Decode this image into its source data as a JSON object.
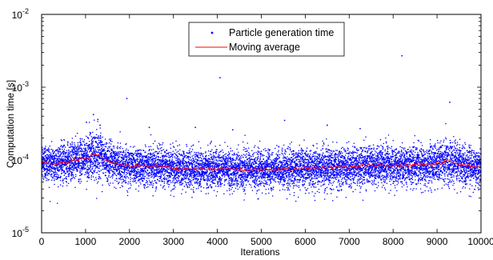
{
  "chart_data": {
    "type": "scatter",
    "title": "",
    "xlabel": "Iterations",
    "ylabel": "Computation time [s]",
    "xlim": [
      0,
      10000
    ],
    "ylim": [
      1e-05,
      0.01
    ],
    "yscale": "log",
    "grid": false,
    "legend_position": "top-center",
    "x_ticks": [
      "0",
      "1000",
      "2000",
      "3000",
      "4000",
      "5000",
      "6000",
      "7000",
      "8000",
      "9000",
      "10000"
    ],
    "y_ticks": [
      {
        "base": "10",
        "exp": "-5"
      },
      {
        "base": "10",
        "exp": "-4"
      },
      {
        "base": "10",
        "exp": "-3"
      },
      {
        "base": "10",
        "exp": "-2"
      }
    ],
    "series": [
      {
        "name": "Particle generation time",
        "kind": "scatter",
        "color": "#0000ff",
        "n_points": 10000,
        "band_lower_approx": 4e-05,
        "band_upper_approx": 0.0002,
        "outliers": [
          {
            "x": 1020,
            "y": 0.00033
          },
          {
            "x": 1180,
            "y": 0.00042
          },
          {
            "x": 1280,
            "y": 0.00036
          },
          {
            "x": 1330,
            "y": 0.0003
          },
          {
            "x": 1940,
            "y": 0.0007
          },
          {
            "x": 2450,
            "y": 0.00028
          },
          {
            "x": 3500,
            "y": 0.00028
          },
          {
            "x": 4060,
            "y": 0.00135
          },
          {
            "x": 4350,
            "y": 0.00026
          },
          {
            "x": 5530,
            "y": 0.00035
          },
          {
            "x": 6500,
            "y": 0.0003
          },
          {
            "x": 7250,
            "y": 0.00027
          },
          {
            "x": 8200,
            "y": 0.0027
          },
          {
            "x": 9290,
            "y": 0.00062
          }
        ]
      },
      {
        "name": "Moving average",
        "kind": "line",
        "color": "#ff0000",
        "points": [
          {
            "x": 0,
            "y": 9.5e-05
          },
          {
            "x": 300,
            "y": 8.8e-05
          },
          {
            "x": 700,
            "y": 9.8e-05
          },
          {
            "x": 1000,
            "y": 0.000105
          },
          {
            "x": 1200,
            "y": 0.00012
          },
          {
            "x": 1300,
            "y": 0.000118
          },
          {
            "x": 1500,
            "y": 9.5e-05
          },
          {
            "x": 2000,
            "y": 8.2e-05
          },
          {
            "x": 2500,
            "y": 8.5e-05
          },
          {
            "x": 3000,
            "y": 7.7e-05
          },
          {
            "x": 3500,
            "y": 7.5e-05
          },
          {
            "x": 4000,
            "y": 7.7e-05
          },
          {
            "x": 4500,
            "y": 7.4e-05
          },
          {
            "x": 5000,
            "y": 7.3e-05
          },
          {
            "x": 5500,
            "y": 7.4e-05
          },
          {
            "x": 6000,
            "y": 7.7e-05
          },
          {
            "x": 6500,
            "y": 7.9e-05
          },
          {
            "x": 7000,
            "y": 8.1e-05
          },
          {
            "x": 7500,
            "y": 8.4e-05
          },
          {
            "x": 8000,
            "y": 8.2e-05
          },
          {
            "x": 8500,
            "y": 8.6e-05
          },
          {
            "x": 9000,
            "y": 8.8e-05
          },
          {
            "x": 9200,
            "y": 9.6e-05
          },
          {
            "x": 9500,
            "y": 8.9e-05
          },
          {
            "x": 10000,
            "y": 7.8e-05
          }
        ]
      }
    ]
  }
}
